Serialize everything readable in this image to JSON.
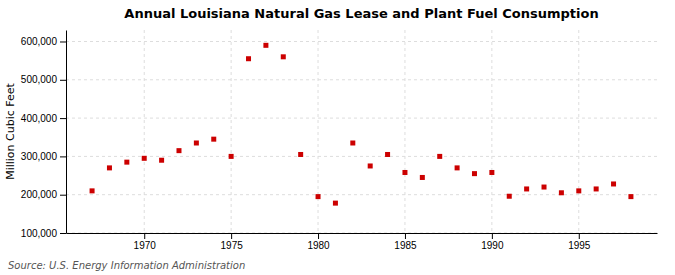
{
  "chart_data": {
    "type": "scatter",
    "title": "Annual Louisiana Natural Gas Lease and Plant Fuel Consumption",
    "ylabel": "Million Cubic Feet",
    "source": "Source: U.S. Energy Information Administration",
    "x": [
      1967,
      1968,
      1969,
      1970,
      1971,
      1972,
      1973,
      1974,
      1975,
      1976,
      1977,
      1978,
      1979,
      1980,
      1981,
      1982,
      1983,
      1984,
      1985,
      1986,
      1987,
      1988,
      1989,
      1990,
      1991,
      1992,
      1993,
      1994,
      1995,
      1996,
      1997,
      1998
    ],
    "values": [
      210000,
      270000,
      285000,
      295000,
      290000,
      315000,
      335000,
      345000,
      300000,
      555000,
      590000,
      560000,
      305000,
      195000,
      178000,
      335000,
      275000,
      305000,
      258000,
      245000,
      300000,
      270000,
      255000,
      258000,
      196000,
      215000,
      220000,
      205000,
      210000,
      215000,
      228000,
      195000
    ],
    "color": "#cc0000",
    "marker": "square",
    "xlim": [
      1965.5,
      1999.5
    ],
    "ylim": [
      100000,
      630000
    ],
    "xticks": [
      1970,
      1975,
      1980,
      1985,
      1990,
      1995
    ],
    "yticks": [
      {
        "value": 100000,
        "label": "100,000"
      },
      {
        "value": 200000,
        "label": "200,000"
      },
      {
        "value": 300000,
        "label": "300,000"
      },
      {
        "value": 400000,
        "label": "400,000"
      },
      {
        "value": 500000,
        "label": "500,000"
      },
      {
        "value": 600000,
        "label": "600,000"
      }
    ],
    "grid": true
  }
}
